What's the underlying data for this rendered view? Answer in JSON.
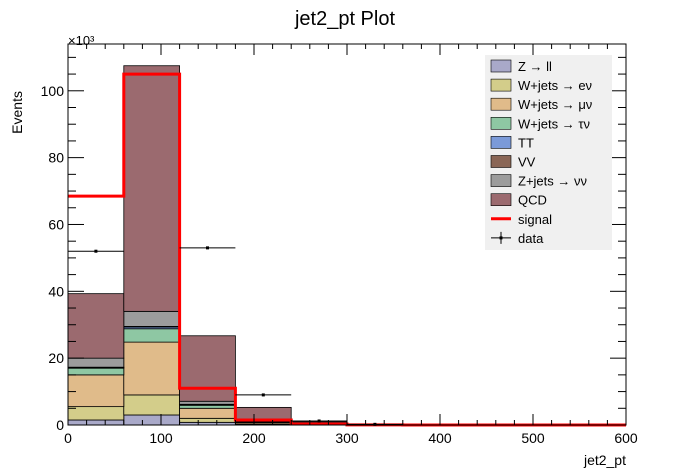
{
  "chart_data": {
    "type": "bar",
    "stacked": true,
    "title": "jet2_pt Plot",
    "xlabel": "jet2_pt",
    "ylabel": "Events",
    "y_multiplier_label": "×10³",
    "xlim": [
      0,
      600
    ],
    "ylim": [
      0,
      114000
    ],
    "x_ticks": [
      0,
      100,
      200,
      300,
      400,
      500,
      600
    ],
    "x_tick_labels": [
      "0",
      "100",
      "200",
      "300",
      "400",
      "500",
      "600"
    ],
    "y_ticks": [
      0,
      20000,
      40000,
      60000,
      80000,
      100000
    ],
    "y_tick_labels": [
      "0",
      "20",
      "40",
      "60",
      "80",
      "100"
    ],
    "bin_edges": [
      0,
      60,
      120,
      180,
      240,
      300,
      360,
      420,
      480,
      540,
      600
    ],
    "legend_position": "top-right",
    "series": [
      {
        "name": "Z → ll",
        "color": "#a9a9c9",
        "values": [
          1500,
          3000,
          800,
          100,
          10,
          0,
          0,
          0,
          0,
          0
        ]
      },
      {
        "name": "W+jets → eν",
        "color": "#d3cd8a",
        "values": [
          4000,
          6000,
          1200,
          200,
          20,
          0,
          0,
          0,
          0,
          0
        ]
      },
      {
        "name": "W+jets → μν",
        "color": "#e0bb8a",
        "values": [
          9500,
          15800,
          3000,
          400,
          40,
          0,
          0,
          0,
          0,
          0
        ]
      },
      {
        "name": "W+jets → τν",
        "color": "#8ec7a3",
        "values": [
          2000,
          4000,
          900,
          100,
          10,
          0,
          0,
          0,
          0,
          0
        ]
      },
      {
        "name": "TT",
        "color": "#7b9ad8",
        "values": [
          200,
          500,
          200,
          50,
          10,
          0,
          0,
          0,
          0,
          0
        ]
      },
      {
        "name": "VV",
        "color": "#8a6656",
        "values": [
          100,
          200,
          100,
          20,
          5,
          0,
          0,
          0,
          0,
          0
        ]
      },
      {
        "name": "Z+jets → νν",
        "color": "#9c9c9c",
        "values": [
          2700,
          4500,
          900,
          200,
          20,
          0,
          0,
          0,
          0,
          0
        ]
      },
      {
        "name": "QCD",
        "color": "#9b6a6f",
        "values": [
          19300,
          73500,
          19600,
          4200,
          800,
          100,
          0,
          0,
          0,
          0
        ]
      }
    ],
    "signal": {
      "name": "signal",
      "color": "#ff0000",
      "values": [
        68500,
        105000,
        11000,
        1500,
        300,
        50,
        0,
        0,
        0,
        0
      ]
    },
    "data": {
      "name": "data",
      "values": [
        52000,
        null,
        53000,
        9000,
        1200,
        200,
        0,
        0,
        0,
        0
      ]
    }
  }
}
